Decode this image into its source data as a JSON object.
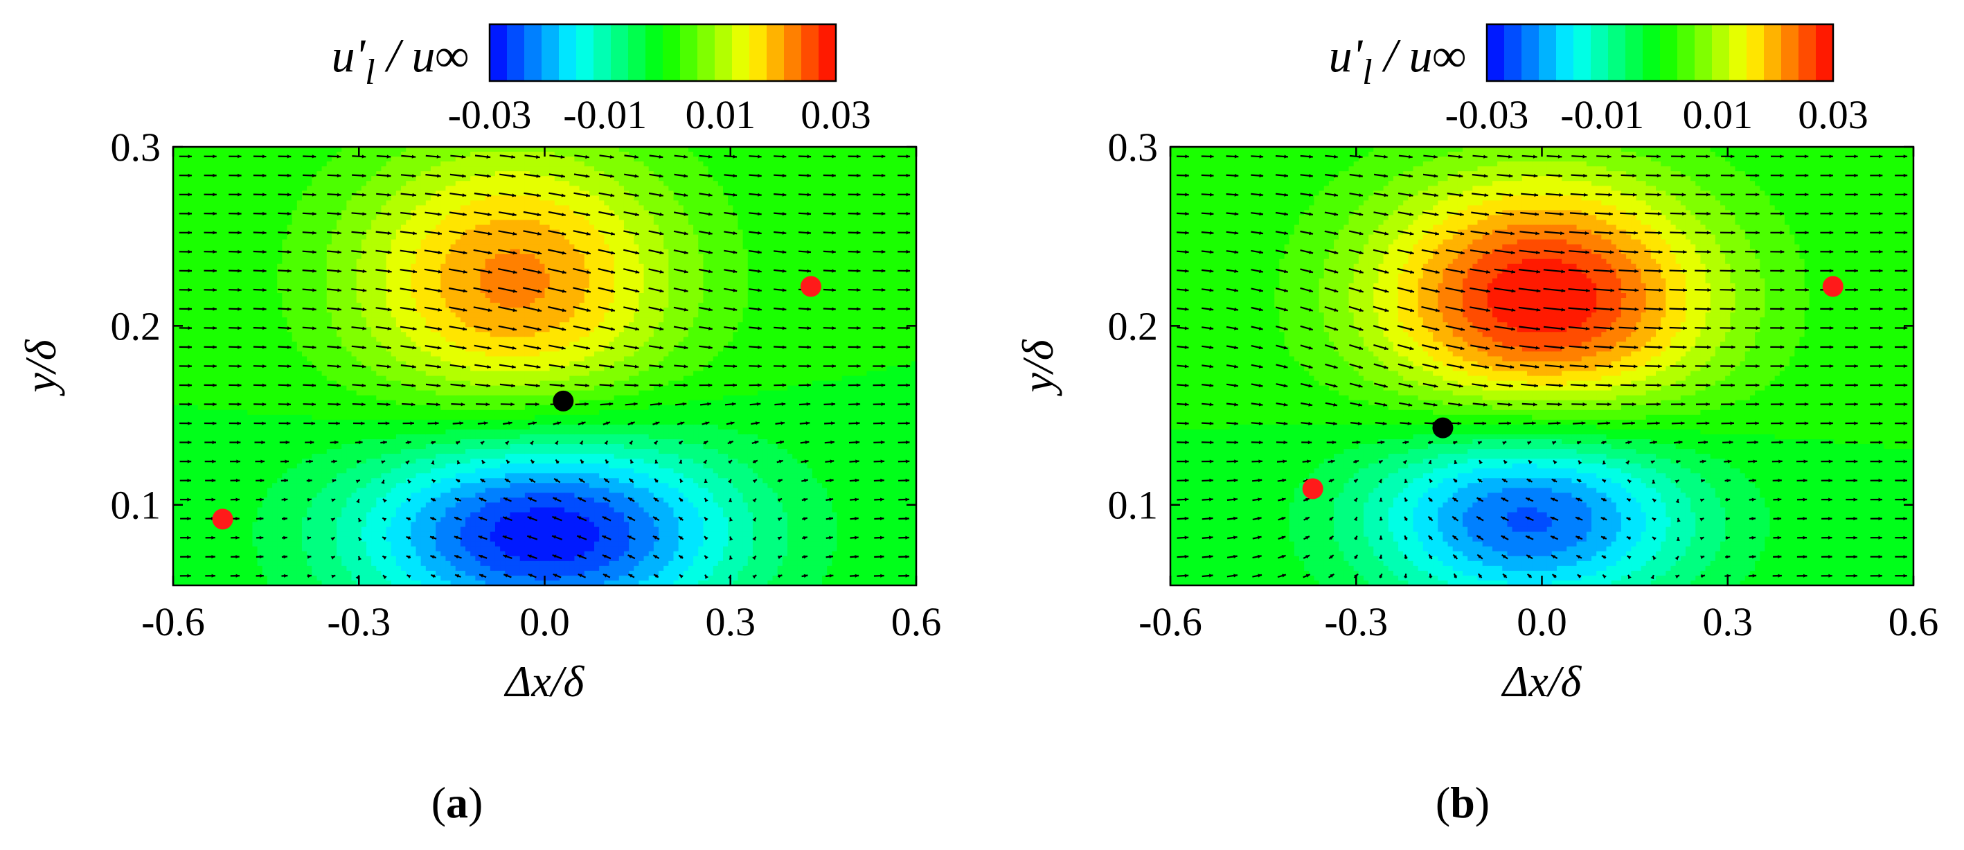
{
  "figure": {
    "colorbar_title": "u'l / u∞",
    "colormap": [
      "#0000ff",
      "#00ffff",
      "#00ff00",
      "#ffff00",
      "#ff0000"
    ],
    "colorbar_levels": 20
  },
  "chart_data": [
    {
      "type": "heatmap",
      "panel_label": "(a)",
      "xlabel": "Δx/δ",
      "ylabel": "y/δ",
      "xlim": [
        -0.6,
        0.6
      ],
      "ylim": [
        0.055,
        0.3
      ],
      "x_ticks": [
        "-0.6",
        "-0.3",
        "0.0",
        "0.3",
        "0.6"
      ],
      "y_ticks": [
        "0.1",
        "0.2",
        "0.3"
      ],
      "colorbar": {
        "label": "u'l / u∞",
        "range": [
          -0.03,
          0.03
        ],
        "tick_labels": [
          "-0.03",
          "-0.01",
          "0.01",
          "0.03"
        ]
      },
      "field": [
        {
          "kind": "positive_lobe",
          "x": -0.05,
          "y": 0.225,
          "peak": 0.022,
          "sx": 0.19,
          "sy": 0.055
        },
        {
          "kind": "negative_lobe",
          "x": 0.0,
          "y": 0.085,
          "peak": -0.03,
          "sx": 0.22,
          "sy": 0.04
        }
      ],
      "points": [
        {
          "color": "red",
          "x": -0.52,
          "y": 0.092
        },
        {
          "color": "black",
          "x": 0.03,
          "y": 0.158
        },
        {
          "color": "red",
          "x": 0.43,
          "y": 0.222
        }
      ]
    },
    {
      "type": "heatmap",
      "panel_label": "(b)",
      "xlabel": "Δx/δ",
      "ylabel": "y/δ",
      "xlim": [
        -0.6,
        0.6
      ],
      "ylim": [
        0.055,
        0.3
      ],
      "x_ticks": [
        "-0.6",
        "-0.3",
        "0.0",
        "0.3",
        "0.6"
      ],
      "y_ticks": [
        "0.1",
        "0.2",
        "0.3"
      ],
      "colorbar": {
        "label": "u'l / u∞",
        "range": [
          -0.03,
          0.03
        ],
        "tick_labels": [
          "-0.03",
          "-0.01",
          "0.01",
          "0.03"
        ]
      },
      "field": [
        {
          "kind": "positive_lobe",
          "x": 0.0,
          "y": 0.215,
          "peak": 0.03,
          "sx": 0.2,
          "sy": 0.05
        },
        {
          "kind": "negative_lobe",
          "x": -0.02,
          "y": 0.095,
          "peak": -0.026,
          "sx": 0.19,
          "sy": 0.038
        }
      ],
      "points": [
        {
          "color": "red",
          "x": -0.37,
          "y": 0.109
        },
        {
          "color": "black",
          "x": -0.16,
          "y": 0.143
        },
        {
          "color": "red",
          "x": 0.47,
          "y": 0.222
        }
      ]
    }
  ]
}
